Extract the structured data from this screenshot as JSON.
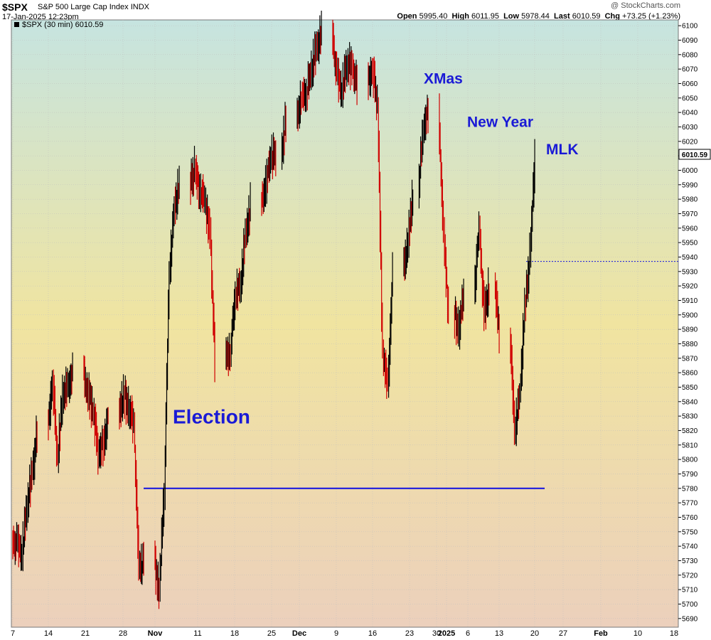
{
  "header": {
    "symbol": "$SPX",
    "company": "S&P 500 Large Cap Index",
    "exchange": "INDX",
    "timestamp": "17-Jan-2025 12:23pm",
    "copyright": "@ StockCharts.com",
    "open_label": "Open",
    "open": "5995.40",
    "high_label": "High",
    "high": "6011.95",
    "low_label": "Low",
    "low": "5978.44",
    "last_label": "Last",
    "last": "6010.59",
    "chg_label": "Chg",
    "chg": "+73.25 (+1.23%)"
  },
  "legend": "$SPX (30 min) 6010.59",
  "colors": {
    "bar_up": "#000000",
    "bar_down": "#d00000",
    "support_line": "#1010e0",
    "annotation": "#1a1ad6",
    "bg_top": "#c6e4e0",
    "bg_mid": "#f0e4a0",
    "bg_bottom": "#ecd0bc",
    "grid": "#bfbfbf"
  },
  "chart_data": {
    "type": "line",
    "title": "$SPX (30 min)",
    "ylim": [
      5684,
      6104
    ],
    "y_ticks": [
      5690,
      5700,
      5710,
      5720,
      5730,
      5740,
      5750,
      5760,
      5770,
      5780,
      5790,
      5800,
      5810,
      5820,
      5830,
      5840,
      5850,
      5860,
      5870,
      5880,
      5890,
      5900,
      5910,
      5920,
      5930,
      5940,
      5950,
      5960,
      5970,
      5980,
      5990,
      6000,
      6010,
      6020,
      6030,
      6040,
      6050,
      6060,
      6070,
      6080,
      6090,
      6100
    ],
    "x_labels": [
      "7",
      "14",
      "21",
      "28",
      "Nov",
      "11",
      "18",
      "25",
      "Dec",
      "9",
      "16",
      "23",
      "30",
      "2025",
      "6",
      "13",
      "20",
      "27",
      "Feb",
      "10",
      "18"
    ],
    "last_value_label": "6010.59",
    "grid": true,
    "series": [
      {
        "x": [
          "Oct 7",
          "Oct 8",
          "Oct 9",
          "Oct 10",
          "Oct 11",
          "Oct 14",
          "Oct 15",
          "Oct 16",
          "Oct 17",
          "Oct 18",
          "Oct 21",
          "Oct 22",
          "Oct 23",
          "Oct 24",
          "Oct 25",
          "Oct 28",
          "Oct 29",
          "Oct 30",
          "Oct 31",
          "Nov 1",
          "Nov 4",
          "Nov 5",
          "Nov 6",
          "Nov 7",
          "Nov 8",
          "Nov 11",
          "Nov 12",
          "Nov 13",
          "Nov 14",
          "Nov 15",
          "Nov 18",
          "Nov 19",
          "Nov 20",
          "Nov 21",
          "Nov 22",
          "Nov 25",
          "Nov 26",
          "Nov 27",
          "Nov 29",
          "Dec 2",
          "Dec 3",
          "Dec 4",
          "Dec 5",
          "Dec 6",
          "Dec 9",
          "Dec 10",
          "Dec 11",
          "Dec 12",
          "Dec 13",
          "Dec 16",
          "Dec 17",
          "Dec 18",
          "Dec 19",
          "Dec 20",
          "Dec 23",
          "Dec 24",
          "Dec 26",
          "Dec 27",
          "Dec 30",
          "Dec 31",
          "Jan 2",
          "Jan 3",
          "Jan 6",
          "Jan 7",
          "Jan 8",
          "Jan 10",
          "Jan 13",
          "Jan 14",
          "Jan 15",
          "Jan 16",
          "Jan 17"
        ],
        "values": [
          5742,
          5735,
          5770,
          5790,
          5820,
          5855,
          5800,
          5845,
          5850,
          5860,
          5845,
          5835,
          5805,
          5810,
          5830,
          5845,
          5835,
          5825,
          5725,
          5730,
          5710,
          5780,
          5930,
          5975,
          5990,
          6000,
          5985,
          5980,
          5955,
          5870,
          5875,
          5915,
          5920,
          5955,
          5975,
          5990,
          6010,
          6010,
          6035,
          6050,
          6055,
          6070,
          6085,
          6095,
          6065,
          6055,
          6075,
          6070,
          6060,
          6070,
          6045,
          5875,
          5850,
          5930,
          5950,
          5985,
          6030,
          6040,
          5955,
          5900,
          5890,
          5915,
          5960,
          5900,
          5920,
          5890,
          5820,
          5845,
          5905,
          5940,
          6010
        ]
      }
    ],
    "support_line": 5780,
    "reference_line": 5937,
    "annotations": [
      {
        "text": "Election",
        "x": "Nov 4",
        "y": 5825
      },
      {
        "text": "XMas",
        "x": "Dec 25",
        "y": 6060
      },
      {
        "text": "New Year",
        "x": "Jan 2",
        "y": 6030
      },
      {
        "text": "MLK",
        "x": "Jan 20",
        "y": 6011
      }
    ]
  }
}
